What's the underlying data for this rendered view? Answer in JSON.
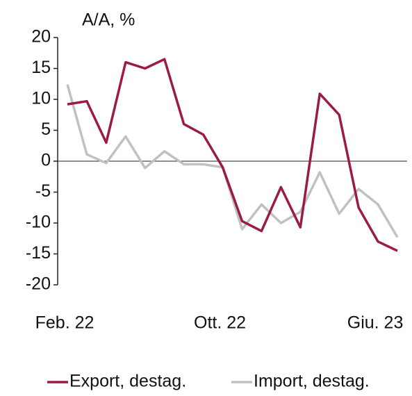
{
  "chart_data": {
    "type": "line",
    "title": "A/A, %",
    "categories": [
      "Feb. 22",
      null,
      null,
      null,
      null,
      null,
      null,
      null,
      "Ott. 22",
      null,
      null,
      null,
      null,
      null,
      null,
      null,
      "Giu. 23",
      null
    ],
    "series": [
      {
        "name": "Export, destag.",
        "color": "#9b1b45",
        "values": [
          9.2,
          9.7,
          3,
          16,
          15,
          16.5,
          6,
          4.3,
          -1,
          -9.7,
          -11.3,
          -4.2,
          -10.7,
          10.9,
          7.5,
          -7.5,
          -13,
          -14.5
        ]
      },
      {
        "name": "Import, destag.",
        "color": "#bfc1c2",
        "values": [
          12.4,
          1.1,
          -0.3,
          4,
          -1.1,
          1.6,
          -0.5,
          -0.5,
          -1,
          -11,
          -7,
          -10,
          -8.2,
          -1.8,
          -8.5,
          -4.5,
          -7,
          -12.3
        ]
      }
    ],
    "ylim": [
      -20,
      20
    ],
    "yticks": [
      20,
      15,
      10,
      5,
      0,
      -5,
      -10,
      -15,
      -20
    ]
  }
}
